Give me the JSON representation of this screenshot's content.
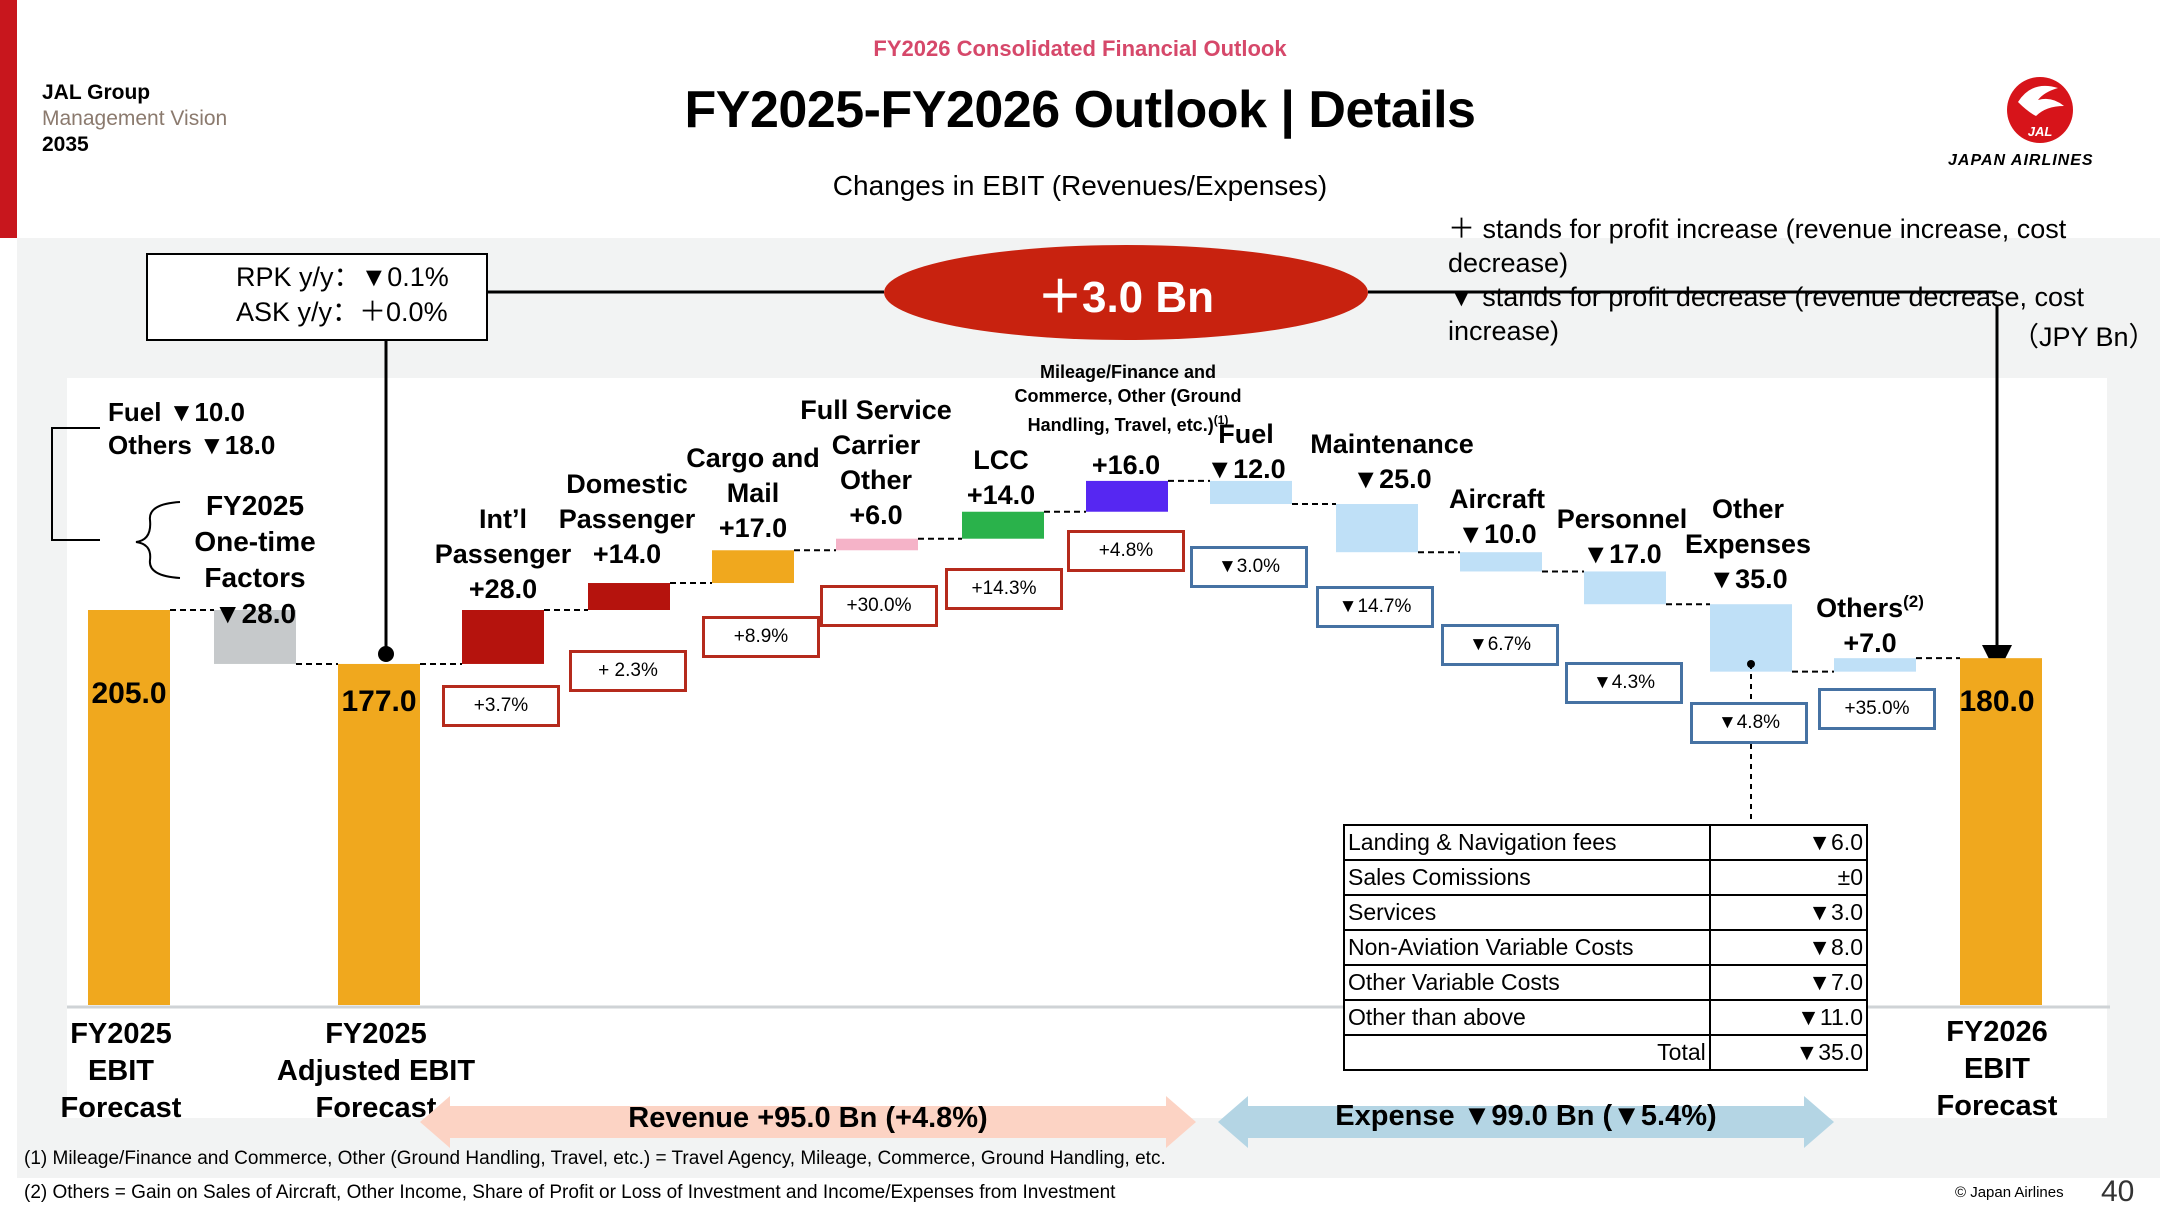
{
  "header": {
    "brand_line1": "JAL Group",
    "brand_line2": "Management Vision",
    "brand_line3": "2035",
    "supertitle": "FY2026 Consolidated Financial Outlook",
    "title": "FY2025-FY2026 Outlook | Details",
    "subtitle": "Changes in EBIT (Revenues/Expenses)",
    "logo_text": "JAPAN AIRLINES",
    "logo_icon": "crane-logo-icon"
  },
  "notes": {
    "plus_note": "＋ stands for profit increase (revenue increase, cost decrease)",
    "minus_note": "▼ stands for profit decrease (revenue decrease, cost increase)",
    "unit": "（JPY Bn）"
  },
  "rpk_box": {
    "line1": "RPK y/y：▼0.1%",
    "line2": "ASK y/y：＋0.0%"
  },
  "total_change": "＋3.0 Bn",
  "one_time": {
    "fuel": "Fuel ▼10.0",
    "others": "Others ▼18.0",
    "line1": "FY2025",
    "line2": "One-time Factors",
    "line3": "▼28.0"
  },
  "colors": {
    "ebit": "#f0a81e",
    "onetime": "#c6c9cb",
    "intl": "#b5130d",
    "domestic": "#b5130d",
    "cargo": "#f0a81e",
    "fsc_other": "#f5b3c8",
    "lcc": "#2ab24b",
    "mileage": "#5627f2",
    "expense": "#bfe0f7",
    "revenue_arrow": "#fcd3c4",
    "expense_arrow": "#b4d5e4"
  },
  "chart_data": {
    "type": "bar",
    "subtype": "waterfall",
    "unit": "JPY Bn",
    "steps": [
      {
        "label": "FY2025 EBIT Forecast",
        "value": 205.0,
        "kind": "total"
      },
      {
        "label": "FY2025 One-time Factors",
        "value": -28.0,
        "kind": "delta"
      },
      {
        "label": "FY2025 Adjusted EBIT Forecast",
        "value": 177.0,
        "kind": "total"
      },
      {
        "label": "Int'l Passenger",
        "value": 28.0,
        "kind": "delta",
        "pct": "+3.7%"
      },
      {
        "label": "Domestic Passenger",
        "value": 14.0,
        "kind": "delta",
        "pct": "+ 2.3%"
      },
      {
        "label": "Cargo and Mail",
        "value": 17.0,
        "kind": "delta",
        "pct": "+8.9%"
      },
      {
        "label": "Full Service Carrier Other",
        "value": 6.0,
        "kind": "delta",
        "pct": "+30.0%"
      },
      {
        "label": "LCC",
        "value": 14.0,
        "kind": "delta",
        "pct": "+14.3%"
      },
      {
        "label": "Mileage/Finance and Commerce, Other (Ground Handling, Travel, etc.)",
        "value": 16.0,
        "kind": "delta",
        "pct": "+4.8%"
      },
      {
        "label": "Fuel",
        "value": -12.0,
        "kind": "delta",
        "pct": "▼3.0%"
      },
      {
        "label": "Maintenance",
        "value": -25.0,
        "kind": "delta",
        "pct": "▼14.7%"
      },
      {
        "label": "Aircraft",
        "value": -10.0,
        "kind": "delta",
        "pct": "▼6.7%"
      },
      {
        "label": "Personnel",
        "value": -17.0,
        "kind": "delta",
        "pct": "▼4.3%"
      },
      {
        "label": "Other Expenses",
        "value": -35.0,
        "kind": "delta",
        "pct": "▼4.8%"
      },
      {
        "label": "Others",
        "value": 7.0,
        "kind": "delta",
        "pct": "+35.0%"
      },
      {
        "label": "FY2026 EBIT Forecast",
        "value": 180.0,
        "kind": "total"
      }
    ]
  },
  "labels": {
    "ebit2025_value": "205.0",
    "adj_value": "177.0",
    "ebit2026_value": "180.0",
    "intl": [
      "Int’l",
      "Passenger",
      "+28.0"
    ],
    "domestic": [
      "Domestic",
      "Passenger",
      "+14.0"
    ],
    "cargo": [
      "Cargo and",
      "Mail",
      "+17.0"
    ],
    "fsc": [
      "Full Service",
      "Carrier",
      "Other",
      "+6.0"
    ],
    "lcc": [
      "LCC",
      "+14.0"
    ],
    "mileage_desc": [
      "Mileage/Finance and",
      "Commerce, Other (Ground",
      "Handling, Travel, etc.)"
    ],
    "mileage_sup": "(1)",
    "mileage_value": "+16.0",
    "fuel": [
      "Fuel",
      "▼12.0"
    ],
    "maintenance": [
      "Maintenance",
      "▼25.0"
    ],
    "aircraft": [
      "Aircraft",
      "▼10.0"
    ],
    "personnel": [
      "Personnel",
      "▼17.0"
    ],
    "other_exp": [
      "Other",
      "Expenses",
      "▼35.0"
    ],
    "others": "Others",
    "others_sup": "(2)",
    "others_value": "+7.0"
  },
  "pct_labels": {
    "intl": "+3.7%",
    "domestic": "+ 2.3%",
    "cargo": "+8.9%",
    "fsc": "+30.0%",
    "lcc": "+14.3%",
    "mileage": "+4.8%",
    "fuel": "▼3.0%",
    "maintenance": "▼14.7%",
    "aircraft": "▼6.7%",
    "personnel": "▼4.3%",
    "other_exp": "▼4.8%",
    "others": "+35.0%"
  },
  "axis_labels": {
    "fy2025": [
      "FY2025",
      "EBIT",
      "Forecast"
    ],
    "adjusted": [
      "FY2025",
      "Adjusted EBIT",
      "Forecast"
    ],
    "fy2026": [
      "FY2026",
      "EBIT",
      "Forecast"
    ]
  },
  "arrows": {
    "revenue": "Revenue +95.0 Bn (+4.8%)",
    "expense": "Expense ▼99.0 Bn (▼5.4%)"
  },
  "expense_table": [
    {
      "item": "Landing & Navigation fees",
      "value": "▼6.0"
    },
    {
      "item": "Sales Comissions",
      "value": "±0"
    },
    {
      "item": "Services",
      "value": "▼3.0"
    },
    {
      "item": "Non-Aviation Variable Costs",
      "value": "▼8.0"
    },
    {
      "item": "Other Variable Costs",
      "value": "▼7.0"
    },
    {
      "item": "Other than above",
      "value": "▼11.0"
    },
    {
      "item": "Total",
      "value": "▼35.0"
    }
  ],
  "footnotes": {
    "fn1": "(1) Mileage/Finance and Commerce, Other (Ground Handling, Travel, etc.) = Travel Agency, Mileage, Commerce, Ground Handling, etc.",
    "fn2": "(2) Others = Gain on Sales of Aircraft, Other Income, Share of Profit or Loss of Investment and Income/Expenses from Investment"
  },
  "footer": {
    "copyright": "© Japan Airlines",
    "page": "40"
  }
}
